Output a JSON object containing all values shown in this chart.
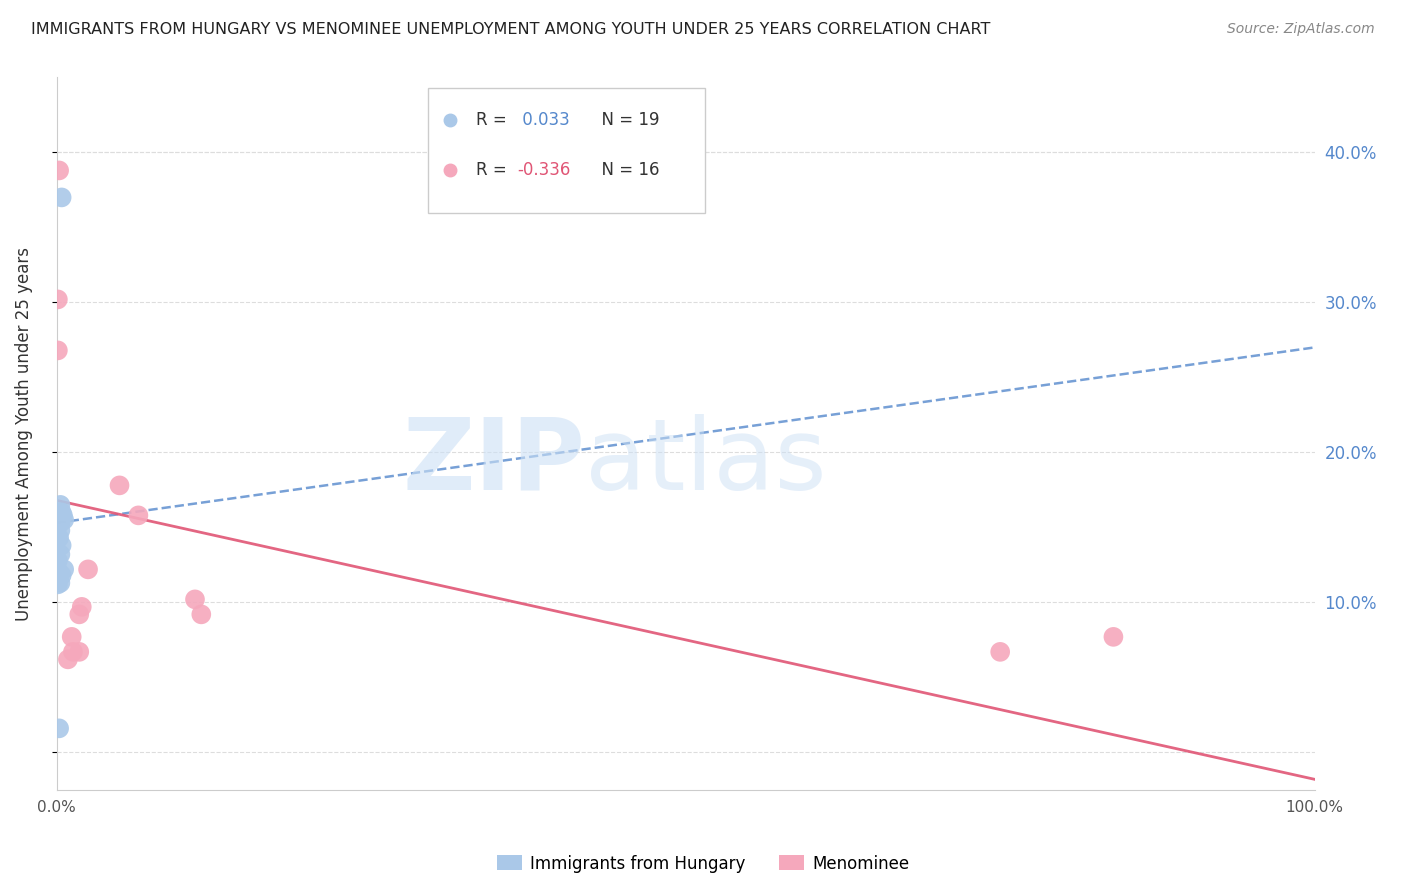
{
  "title": "IMMIGRANTS FROM HUNGARY VS MENOMINEE UNEMPLOYMENT AMONG YOUTH UNDER 25 YEARS CORRELATION CHART",
  "source": "Source: ZipAtlas.com",
  "ylabel": "Unemployment Among Youth under 25 years",
  "xlim": [
    0.0,
    1.0
  ],
  "ylim": [
    -0.025,
    0.45
  ],
  "yticks": [
    0.0,
    0.1,
    0.2,
    0.3,
    0.4
  ],
  "ytick_labels_right": [
    "",
    "10.0%",
    "20.0%",
    "30.0%",
    "40.0%"
  ],
  "blue_color": "#aac8e8",
  "pink_color": "#f5a8bc",
  "blue_line_color": "#5588cc",
  "pink_line_color": "#e05575",
  "legend_blue_r": " 0.033",
  "legend_blue_n": "19",
  "legend_pink_r": "-0.336",
  "legend_pink_n": "16",
  "blue_scatter_x": [
    0.004,
    0.003,
    0.004,
    0.002,
    0.001,
    0.005,
    0.006,
    0.003,
    0.003,
    0.002,
    0.004,
    0.003,
    0.001,
    0.006,
    0.002,
    0.004,
    0.003,
    0.001,
    0.002
  ],
  "blue_scatter_y": [
    0.37,
    0.165,
    0.16,
    0.16,
    0.158,
    0.158,
    0.155,
    0.153,
    0.148,
    0.143,
    0.138,
    0.132,
    0.128,
    0.122,
    0.12,
    0.118,
    0.113,
    0.112,
    0.016
  ],
  "pink_scatter_x": [
    0.002,
    0.001,
    0.001,
    0.05,
    0.065,
    0.11,
    0.115,
    0.75,
    0.84,
    0.025,
    0.02,
    0.018,
    0.018,
    0.013,
    0.012,
    0.009
  ],
  "pink_scatter_y": [
    0.388,
    0.302,
    0.268,
    0.178,
    0.158,
    0.102,
    0.092,
    0.067,
    0.077,
    0.122,
    0.097,
    0.092,
    0.067,
    0.067,
    0.077,
    0.062
  ],
  "blue_trend_y_start": 0.153,
  "blue_trend_y_end": 0.27,
  "pink_trend_y_start": 0.168,
  "pink_trend_y_end": -0.018,
  "grid_color": "#dddddd",
  "spine_color": "#cccccc"
}
